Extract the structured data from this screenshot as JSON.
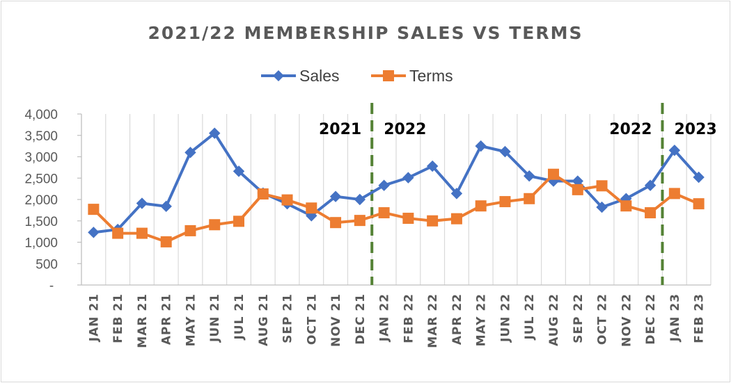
{
  "chart_data": {
    "type": "line",
    "title": "2021/22 MEMBERSHIP SALES VS TERMS",
    "categories": [
      "JAN 21",
      "FEB 21",
      "MAR 21",
      "APR 21",
      "MAY 21",
      "JUN 21",
      "JUL 21",
      "AUG 21",
      "SEP 21",
      "OCT 21",
      "NOV 21",
      "DEC 21",
      "JAN 22",
      "FEB 22",
      "MAR 22",
      "APR 22",
      "MAY 22",
      "JUN 22",
      "JUL 22",
      "AUG 22",
      "SEP 22",
      "OCT 22",
      "NOV 22",
      "DEC 22",
      "JAN 23",
      "FEB 23"
    ],
    "series": [
      {
        "name": "Sales",
        "color": "#4472c4",
        "marker": "diamond",
        "values": [
          1230,
          1300,
          1910,
          1840,
          3100,
          3550,
          2660,
          2150,
          1900,
          1620,
          2070,
          2000,
          2330,
          2510,
          2780,
          2140,
          3250,
          3120,
          2550,
          2430,
          2430,
          1820,
          2020,
          2330,
          3150,
          2520
        ]
      },
      {
        "name": "Terms",
        "color": "#ed7d31",
        "marker": "square",
        "values": [
          1770,
          1210,
          1210,
          1010,
          1270,
          1410,
          1490,
          2130,
          1990,
          1800,
          1460,
          1510,
          1690,
          1560,
          1500,
          1550,
          1850,
          1950,
          2020,
          2590,
          2230,
          2320,
          1850,
          1690,
          2140,
          1900
        ]
      }
    ],
    "ylim": [
      0,
      4000
    ],
    "y_ticks": [
      0,
      500,
      1000,
      1500,
      2000,
      2500,
      3000,
      3500,
      4000
    ],
    "y_tick_labels": [
      "-",
      "500",
      "1,000",
      "1,500",
      "2,000",
      "2,500",
      "3,000",
      "3,500",
      "4,000"
    ],
    "grid": "vertical",
    "legend": "top-center",
    "dividers": [
      {
        "after_category": "DEC 21",
        "color": "#548235",
        "left_label": "2021",
        "right_label": "2022"
      },
      {
        "after_category": "DEC 22",
        "color": "#548235",
        "left_label": "2022",
        "right_label": "2023"
      }
    ]
  }
}
